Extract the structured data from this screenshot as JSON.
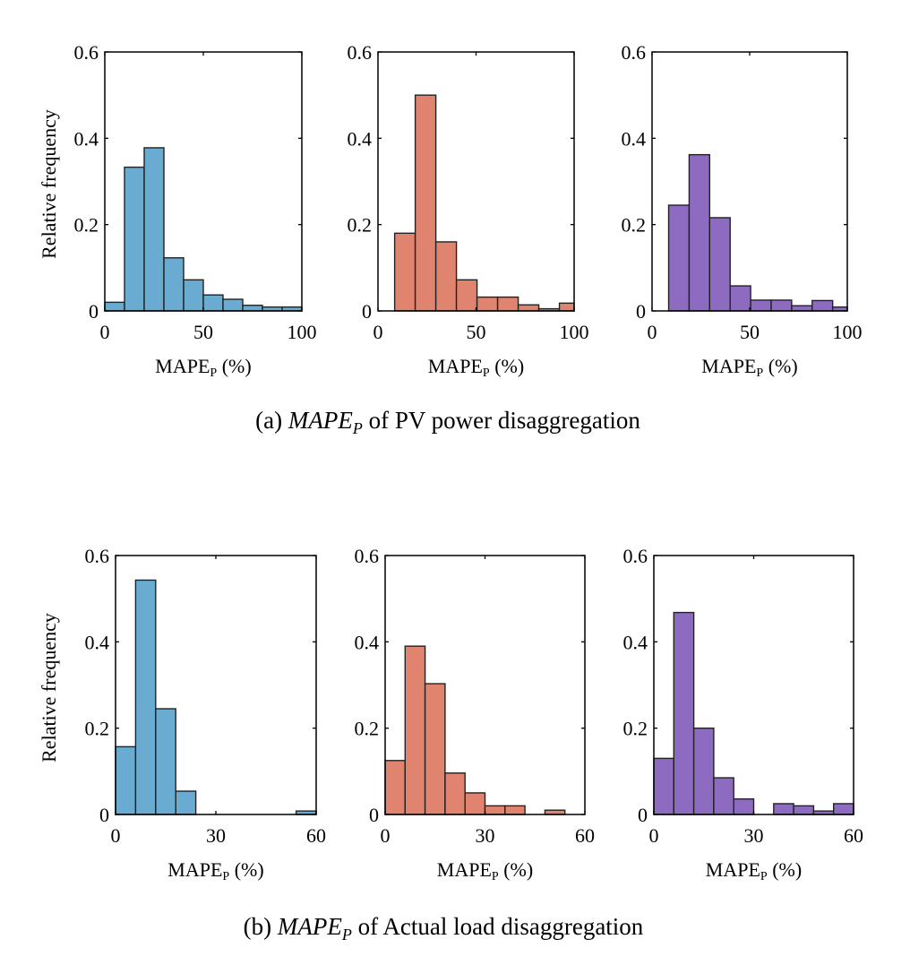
{
  "chart_data": [
    {
      "type": "histogram",
      "group": "a",
      "xlabel": "MAPE",
      "xlabel_sub": "P",
      "xlabel_suffix": " (%)",
      "ylabel": "Relative frequency",
      "xlim": [
        0,
        100
      ],
      "ylim": [
        0,
        0.6
      ],
      "xticks": [
        "0",
        "50",
        "100"
      ],
      "xtick_values": [
        0,
        50,
        100
      ],
      "yticks": [
        "0",
        "0.2",
        "0.4",
        "0.6"
      ],
      "ytick_values": [
        0,
        0.2,
        0.4,
        0.6
      ],
      "color": "#6aabd2",
      "bins": [
        [
          0,
          10,
          0.02
        ],
        [
          10,
          20,
          0.333
        ],
        [
          20,
          30,
          0.378
        ],
        [
          30,
          40,
          0.123
        ],
        [
          40,
          50,
          0.072
        ],
        [
          50,
          60,
          0.037
        ],
        [
          60,
          70,
          0.027
        ],
        [
          70,
          80,
          0.013
        ],
        [
          80,
          90,
          0.009
        ],
        [
          90,
          100,
          0.009
        ]
      ]
    },
    {
      "type": "histogram",
      "group": "a",
      "xlabel": "MAPE",
      "xlabel_sub": "P",
      "xlabel_suffix": " (%)",
      "ylabel": "",
      "xlim": [
        0,
        100
      ],
      "ylim": [
        0,
        0.6
      ],
      "xticks": [
        "0",
        "50",
        "100"
      ],
      "xtick_values": [
        0,
        50,
        100
      ],
      "yticks": [
        "0",
        "0.2",
        "0.4",
        "0.6"
      ],
      "ytick_values": [
        0,
        0.2,
        0.4,
        0.6
      ],
      "color": "#e0836f",
      "bins": [
        [
          8.5,
          19,
          0.18
        ],
        [
          19,
          29.5,
          0.5
        ],
        [
          29.5,
          40,
          0.16
        ],
        [
          40,
          50.5,
          0.072
        ],
        [
          50.5,
          61,
          0.032
        ],
        [
          61,
          71.5,
          0.032
        ],
        [
          71.5,
          82,
          0.014
        ],
        [
          82,
          92.5,
          0.005
        ],
        [
          92.5,
          103,
          0.018
        ]
      ]
    },
    {
      "type": "histogram",
      "group": "a",
      "xlabel": "MAPE",
      "xlabel_sub": "P",
      "xlabel_suffix": " (%)",
      "ylabel": "",
      "xlim": [
        0,
        100
      ],
      "ylim": [
        0,
        0.6
      ],
      "xticks": [
        "0",
        "50",
        "100"
      ],
      "xtick_values": [
        0,
        50,
        100
      ],
      "yticks": [
        "0",
        "0.2",
        "0.4",
        "0.6"
      ],
      "ytick_values": [
        0,
        0.2,
        0.4,
        0.6
      ],
      "color": "#8c6bc0",
      "bins": [
        [
          8.5,
          19,
          0.245
        ],
        [
          19,
          29.5,
          0.362
        ],
        [
          29.5,
          40,
          0.216
        ],
        [
          40,
          50.5,
          0.058
        ],
        [
          50.5,
          61,
          0.025
        ],
        [
          61,
          71.5,
          0.025
        ],
        [
          71.5,
          82,
          0.012
        ],
        [
          82,
          92.5,
          0.024
        ],
        [
          92.5,
          103,
          0.009
        ]
      ]
    },
    {
      "type": "histogram",
      "group": "b",
      "xlabel": "MAPE",
      "xlabel_sub": "P",
      "xlabel_suffix": " (%)",
      "ylabel": "Relative frequency",
      "xlim": [
        0,
        60
      ],
      "ylim": [
        0,
        0.6
      ],
      "xticks": [
        "0",
        "30",
        "60"
      ],
      "xtick_values": [
        0,
        30,
        60
      ],
      "yticks": [
        "0",
        "0.2",
        "0.4",
        "0.6"
      ],
      "ytick_values": [
        0,
        0.2,
        0.4,
        0.6
      ],
      "color": "#6aabd2",
      "bins": [
        [
          0,
          6,
          0.157
        ],
        [
          6,
          12,
          0.543
        ],
        [
          12,
          18,
          0.245
        ],
        [
          18,
          24,
          0.054
        ],
        [
          24,
          30,
          0
        ],
        [
          30,
          36,
          0
        ],
        [
          36,
          42,
          0
        ],
        [
          42,
          48,
          0
        ],
        [
          48,
          54,
          0
        ],
        [
          54,
          60,
          0.008
        ]
      ]
    },
    {
      "type": "histogram",
      "group": "b",
      "xlabel": "MAPE",
      "xlabel_sub": "P",
      "xlabel_suffix": " (%)",
      "ylabel": "",
      "xlim": [
        0,
        60
      ],
      "ylim": [
        0,
        0.6
      ],
      "xticks": [
        "0",
        "30",
        "60"
      ],
      "xtick_values": [
        0,
        30,
        60
      ],
      "yticks": [
        "0",
        "0.2",
        "0.4",
        "0.6"
      ],
      "ytick_values": [
        0,
        0.2,
        0.4,
        0.6
      ],
      "color": "#e0836f",
      "bins": [
        [
          0,
          6,
          0.125
        ],
        [
          6,
          12,
          0.39
        ],
        [
          12,
          18,
          0.303
        ],
        [
          18,
          24,
          0.096
        ],
        [
          24,
          30,
          0.05
        ],
        [
          30,
          36,
          0.02
        ],
        [
          36,
          42,
          0.02
        ],
        [
          42,
          48,
          0
        ],
        [
          48,
          54,
          0.01
        ]
      ]
    },
    {
      "type": "histogram",
      "group": "b",
      "xlabel": "MAPE",
      "xlabel_sub": "P",
      "xlabel_suffix": " (%)",
      "ylabel": "",
      "xlim": [
        0,
        60
      ],
      "ylim": [
        0,
        0.6
      ],
      "xticks": [
        "0",
        "30",
        "60"
      ],
      "xtick_values": [
        0,
        30,
        60
      ],
      "yticks": [
        "0",
        "0.2",
        "0.4",
        "0.6"
      ],
      "ytick_values": [
        0,
        0.2,
        0.4,
        0.6
      ],
      "color": "#8c6bc0",
      "bins": [
        [
          0,
          6,
          0.13
        ],
        [
          6,
          12,
          0.468
        ],
        [
          12,
          18,
          0.2
        ],
        [
          18,
          24,
          0.085
        ],
        [
          24,
          30,
          0.036
        ],
        [
          30,
          36,
          0
        ],
        [
          36,
          42,
          0.025
        ],
        [
          42,
          48,
          0.02
        ],
        [
          48,
          54,
          0.008
        ],
        [
          54,
          60,
          0.025
        ]
      ]
    }
  ],
  "captions": {
    "a": {
      "prefix": "(a) ",
      "var": "MAPE",
      "sub": "P",
      "suffix": " of PV power disaggregation"
    },
    "b": {
      "prefix": "(b) ",
      "var": "MAPE",
      "sub": "P",
      "suffix": " of Actual load disaggregation"
    }
  }
}
